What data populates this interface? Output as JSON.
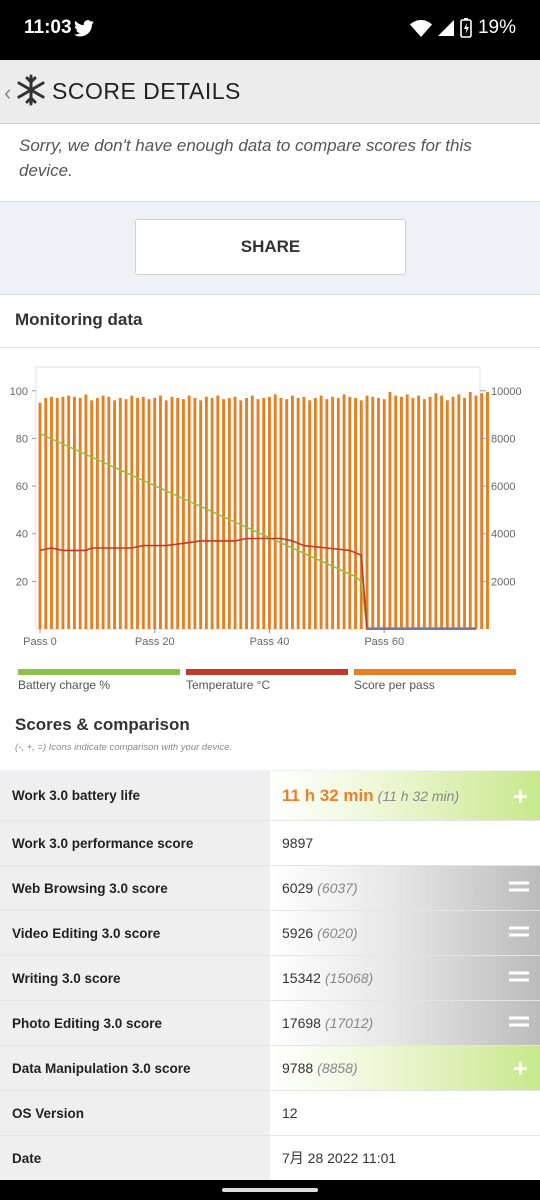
{
  "status": {
    "time": "11:03",
    "battery": "19%"
  },
  "app": {
    "title": "SCORE DETAILS"
  },
  "notice": "Sorry, we don't have enough data to compare scores for this device.",
  "share_label": "SHARE",
  "monitoring": {
    "title": "Monitoring data",
    "legend": [
      {
        "label": "Battery charge %",
        "color": "#8bc34a"
      },
      {
        "label": "Temperature °C",
        "color": "#c0392b"
      },
      {
        "label": "Score per pass",
        "color": "#e67e22"
      }
    ]
  },
  "chart_data": {
    "type": "bar",
    "left_axis": {
      "ticks": [
        20,
        40,
        60,
        80,
        100
      ],
      "range": [
        0,
        110
      ]
    },
    "right_axis": {
      "ticks": [
        2000,
        4000,
        6000,
        8000,
        10000
      ],
      "range": [
        0,
        11000
      ]
    },
    "x_tick_labels": [
      "Pass 0",
      "Pass 20",
      "Pass 40",
      "Pass 60"
    ],
    "series": [
      {
        "name": "Score per pass",
        "axis": "right",
        "values": [
          9500,
          9700,
          9750,
          9700,
          9750,
          9800,
          9750,
          9700,
          9850,
          9600,
          9700,
          9800,
          9750,
          9600,
          9700,
          9650,
          9800,
          9700,
          9750,
          9650,
          9700,
          9800,
          9600,
          9750,
          9700,
          9650,
          9800,
          9700,
          9600,
          9750,
          9700,
          9800,
          9650,
          9700,
          9750,
          9600,
          9700,
          9800,
          9650,
          9700,
          9750,
          9850,
          9700,
          9650,
          9800,
          9700,
          9750,
          9600,
          9700,
          9800,
          9650,
          9750,
          9700,
          9850,
          9750,
          9700,
          9600,
          9800,
          9750,
          9700,
          9650,
          9950,
          9800,
          9750,
          9850,
          9700,
          9800,
          9650,
          9750,
          9900,
          9800,
          9600,
          9750,
          9850,
          9700,
          9950,
          9800,
          9900,
          9950
        ]
      },
      {
        "name": "Battery charge %",
        "axis": "left",
        "points": [
          [
            0,
            82
          ],
          [
            55,
            22
          ],
          [
            56,
            20
          ],
          [
            57,
            0
          ],
          [
            76,
            0
          ]
        ]
      },
      {
        "name": "Temperature °C",
        "axis": "left",
        "points": [
          [
            0,
            33
          ],
          [
            2,
            34
          ],
          [
            4,
            33
          ],
          [
            8,
            33
          ],
          [
            9,
            34
          ],
          [
            12,
            34
          ],
          [
            16,
            34
          ],
          [
            18,
            35
          ],
          [
            22,
            35
          ],
          [
            25,
            36
          ],
          [
            28,
            37
          ],
          [
            34,
            37
          ],
          [
            36,
            38
          ],
          [
            42,
            38
          ],
          [
            44,
            37
          ],
          [
            46,
            35
          ],
          [
            50,
            34
          ],
          [
            54,
            33
          ],
          [
            55,
            32
          ],
          [
            56,
            31
          ],
          [
            57,
            0
          ],
          [
            76,
            0
          ]
        ]
      }
    ]
  },
  "scores": {
    "title": "Scores & comparison",
    "subtitle": "(-, +, =) Icons indicate comparison with your device.",
    "rows": [
      {
        "label": "Work 3.0 battery life",
        "value": "11 h 32 min",
        "compare": "(11 h 32 min)",
        "indicator": "+"
      },
      {
        "label": "Work 3.0 performance score",
        "value": "9897",
        "compare": "",
        "indicator": ""
      },
      {
        "label": "Web Browsing 3.0 score",
        "value": "6029",
        "compare": "(6037)",
        "indicator": "="
      },
      {
        "label": "Video Editing 3.0 score",
        "value": "5926",
        "compare": "(6020)",
        "indicator": "="
      },
      {
        "label": "Writing 3.0 score",
        "value": "15342",
        "compare": "(15068)",
        "indicator": "="
      },
      {
        "label": "Photo Editing 3.0 score",
        "value": "17698",
        "compare": "(17012)",
        "indicator": "="
      },
      {
        "label": "Data Manipulation 3.0 score",
        "value": "9788",
        "compare": "(8858)",
        "indicator": "+"
      },
      {
        "label": "OS Version",
        "value": "12",
        "compare": "",
        "indicator": ""
      },
      {
        "label": "Date",
        "value": "7月 28 2022 11:01",
        "compare": "",
        "indicator": ""
      }
    ]
  }
}
